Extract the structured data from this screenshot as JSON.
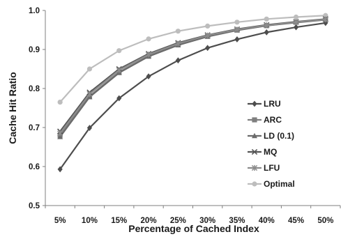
{
  "chart_data": {
    "type": "line",
    "title": "",
    "xlabel": "Percentage of Cached Index",
    "ylabel": "Cache Hit Ratio",
    "categories": [
      "5%",
      "10%",
      "15%",
      "20%",
      "25%",
      "30%",
      "35%",
      "40%",
      "45%",
      "50%"
    ],
    "ylim": [
      0.5,
      1.0
    ],
    "yticks": [
      "0.5",
      "0.6",
      "0.7",
      "0.8",
      "0.9",
      "1.0"
    ],
    "grid": false,
    "legend_position": "right",
    "series": [
      {
        "name": "LRU",
        "color": "#4d4d4d",
        "marker": "diamond",
        "values": [
          0.593,
          0.699,
          0.775,
          0.831,
          0.872,
          0.904,
          0.926,
          0.944,
          0.957,
          0.968
        ]
      },
      {
        "name": "ARC",
        "color": "#7f7f7f",
        "marker": "square",
        "values": [
          0.68,
          0.78,
          0.842,
          0.883,
          0.912,
          0.934,
          0.95,
          0.961,
          0.97,
          0.977
        ]
      },
      {
        "name": "LD (0.1)",
        "color": "#6b6b6b",
        "marker": "triangle",
        "values": [
          0.676,
          0.778,
          0.84,
          0.882,
          0.911,
          0.933,
          0.949,
          0.961,
          0.969,
          0.976
        ]
      },
      {
        "name": "MQ",
        "color": "#555555",
        "marker": "x",
        "values": [
          0.69,
          0.79,
          0.85,
          0.889,
          0.917,
          0.937,
          0.952,
          0.963,
          0.971,
          0.978
        ]
      },
      {
        "name": "LFU",
        "color": "#8c8c8c",
        "marker": "star",
        "values": [
          0.685,
          0.786,
          0.847,
          0.887,
          0.915,
          0.936,
          0.951,
          0.962,
          0.97,
          0.977
        ]
      },
      {
        "name": "Optimal",
        "color": "#bdbdbd",
        "marker": "circle",
        "values": [
          0.765,
          0.85,
          0.897,
          0.927,
          0.947,
          0.96,
          0.97,
          0.978,
          0.983,
          0.987
        ]
      }
    ]
  }
}
